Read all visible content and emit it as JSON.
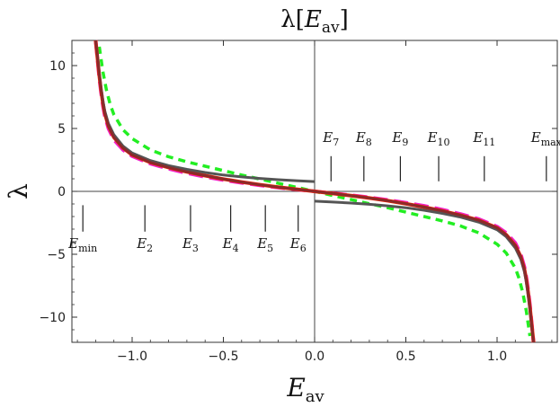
{
  "chart_data": {
    "type": "line",
    "title": "λ[E_av]",
    "title_parts": {
      "lambda": "λ",
      "open": "[",
      "E": "E",
      "sub": "av",
      "close": "]"
    },
    "xlabel": {
      "main": "E",
      "sub": "av"
    },
    "ylabel": "λ",
    "xlim": [
      -1.33,
      1.33
    ],
    "ylim": [
      -12,
      12
    ],
    "x_ticks": [
      -1.0,
      -0.5,
      0.0,
      0.5,
      1.0
    ],
    "x_tick_labels": [
      "−1.0",
      "−0.5",
      "0.0",
      "0.5",
      "1.0"
    ],
    "y_ticks": [
      -10,
      -5,
      0,
      5,
      10
    ],
    "y_tick_labels": [
      "−10",
      "−5",
      "0",
      "5",
      "10"
    ],
    "grid": false,
    "axes_through_origin": true,
    "energy_markers_lower": [
      {
        "x": -1.27,
        "main": "E",
        "sub": "min"
      },
      {
        "x": -0.93,
        "main": "E",
        "sub": "2"
      },
      {
        "x": -0.68,
        "main": "E",
        "sub": "3"
      },
      {
        "x": -0.46,
        "main": "E",
        "sub": "4"
      },
      {
        "x": -0.27,
        "main": "E",
        "sub": "5"
      },
      {
        "x": -0.09,
        "main": "E",
        "sub": "6"
      }
    ],
    "energy_markers_upper": [
      {
        "x": 0.09,
        "main": "E",
        "sub": "7"
      },
      {
        "x": 0.27,
        "main": "E",
        "sub": "8"
      },
      {
        "x": 0.47,
        "main": "E",
        "sub": "9"
      },
      {
        "x": 0.68,
        "main": "E",
        "sub": "10"
      },
      {
        "x": 0.93,
        "main": "E",
        "sub": "11"
      },
      {
        "x": 1.27,
        "main": "E",
        "sub": "max"
      }
    ],
    "series": [
      {
        "color": "#22ee22",
        "style": "dashed",
        "width": 3.5,
        "x": [
          -1.18,
          -1.16,
          -1.14,
          -1.12,
          -1.1,
          -1.05,
          -1.0,
          -0.9,
          -0.8,
          -0.7,
          -0.6,
          -0.5,
          -0.4,
          -0.3,
          -0.2,
          -0.1,
          0.0,
          0.1,
          0.2,
          0.3,
          0.4,
          0.5,
          0.6,
          0.7,
          0.8,
          0.9,
          1.0,
          1.05,
          1.1,
          1.12,
          1.14,
          1.16,
          1.18
        ],
        "y": [
          11.5,
          9.5,
          8.0,
          6.9,
          6.1,
          4.9,
          4.2,
          3.3,
          2.75,
          2.35,
          2.0,
          1.65,
          1.3,
          0.98,
          0.65,
          0.33,
          0.0,
          -0.33,
          -0.65,
          -0.98,
          -1.3,
          -1.65,
          -2.0,
          -2.35,
          -2.75,
          -3.3,
          -4.2,
          -4.9,
          -6.1,
          -6.9,
          -8.0,
          -9.5,
          -11.5
        ]
      },
      {
        "color": "#ee22cc",
        "style": "dashed",
        "width": 4,
        "x": [
          -1.2,
          -1.19,
          -1.18,
          -1.17,
          -1.16,
          -1.15,
          -1.13,
          -1.1,
          -1.05,
          -1.0,
          -0.9,
          -0.8,
          -0.7,
          -0.6,
          -0.5,
          -0.4,
          -0.3,
          -0.2,
          -0.1,
          0.0,
          0.1,
          0.2,
          0.3,
          0.4,
          0.5,
          0.6,
          0.7,
          0.8,
          0.9,
          1.0,
          1.05,
          1.1,
          1.13,
          1.15,
          1.16,
          1.17,
          1.18,
          1.19,
          1.2
        ],
        "y": [
          12.0,
          10.5,
          9.0,
          7.8,
          6.8,
          6.0,
          5.0,
          4.1,
          3.3,
          2.8,
          2.2,
          1.8,
          1.45,
          1.15,
          0.9,
          0.68,
          0.48,
          0.3,
          0.15,
          0.0,
          -0.15,
          -0.3,
          -0.48,
          -0.68,
          -0.9,
          -1.15,
          -1.45,
          -1.8,
          -2.2,
          -2.8,
          -3.3,
          -4.1,
          -5.0,
          -6.0,
          -6.8,
          -7.8,
          -9.0,
          -10.5,
          -12.0
        ]
      },
      {
        "color": "#ff2200",
        "style": "solid",
        "width": 4,
        "x": [
          -1.2,
          -1.19,
          -1.18,
          -1.17,
          -1.16,
          -1.15,
          -1.13,
          -1.1,
          -1.05,
          -1.0,
          -0.9,
          -0.8,
          -0.7,
          -0.6,
          -0.5,
          -0.4,
          -0.3,
          -0.2,
          -0.1,
          0.0,
          0.1,
          0.2,
          0.3,
          0.4,
          0.5,
          0.6,
          0.7,
          0.8,
          0.9,
          1.0,
          1.05,
          1.1,
          1.13,
          1.15,
          1.16,
          1.17,
          1.18,
          1.19,
          1.2
        ],
        "y": [
          12.0,
          10.6,
          9.2,
          8.0,
          7.0,
          6.2,
          5.2,
          4.3,
          3.45,
          2.9,
          2.3,
          1.9,
          1.55,
          1.25,
          0.98,
          0.74,
          0.53,
          0.34,
          0.17,
          0.0,
          -0.17,
          -0.34,
          -0.53,
          -0.74,
          -0.98,
          -1.25,
          -1.55,
          -1.9,
          -2.3,
          -2.9,
          -3.45,
          -4.3,
          -5.2,
          -6.2,
          -7.0,
          -8.0,
          -9.2,
          -10.6,
          -12.0
        ]
      },
      {
        "color": "#555555",
        "style": "solid",
        "width": 3,
        "x": [
          -1.2,
          -1.19,
          -1.18,
          -1.17,
          -1.16,
          -1.15,
          -1.13,
          -1.1,
          -1.05,
          -1.0,
          -0.9,
          -0.8,
          -0.7,
          -0.6,
          -0.5,
          -0.4,
          -0.3,
          -0.2,
          -0.1,
          0.0
        ],
        "y": [
          12.0,
          10.8,
          9.4,
          8.2,
          7.2,
          6.4,
          5.4,
          4.5,
          3.6,
          3.05,
          2.45,
          2.05,
          1.75,
          1.5,
          1.3,
          1.15,
          1.03,
          0.93,
          0.85,
          0.78
        ]
      },
      {
        "color": "#555555",
        "style": "solid",
        "width": 3,
        "x": [
          0.0,
          0.1,
          0.2,
          0.3,
          0.4,
          0.5,
          0.6,
          0.7,
          0.8,
          0.9,
          1.0,
          1.05,
          1.1,
          1.13,
          1.15,
          1.16,
          1.17,
          1.18,
          1.19,
          1.2
        ],
        "y": [
          -0.78,
          -0.85,
          -0.93,
          -1.03,
          -1.15,
          -1.3,
          -1.5,
          -1.75,
          -2.05,
          -2.45,
          -3.05,
          -3.6,
          -4.5,
          -5.4,
          -6.4,
          -7.2,
          -8.2,
          -9.4,
          -10.8,
          -12.0
        ]
      },
      {
        "color": "#8b2a2a",
        "style": "solid",
        "width": 3,
        "x": [
          -1.2,
          -1.19,
          -1.18,
          -1.17,
          -1.16,
          -1.15,
          -1.13,
          -1.1,
          -1.05,
          -1.0,
          -0.9,
          -0.8,
          -0.7,
          -0.6,
          -0.5,
          -0.4,
          -0.3,
          -0.2,
          -0.1,
          0.0,
          0.1,
          0.2,
          0.3,
          0.4,
          0.5,
          0.6,
          0.7,
          0.8,
          0.9,
          1.0,
          1.05,
          1.1,
          1.13,
          1.15,
          1.16,
          1.17,
          1.18,
          1.19,
          1.2
        ],
        "y": [
          12.0,
          10.6,
          9.2,
          8.0,
          7.0,
          6.2,
          5.2,
          4.3,
          3.45,
          2.9,
          2.3,
          1.9,
          1.55,
          1.25,
          0.98,
          0.74,
          0.53,
          0.34,
          0.17,
          0.0,
          -0.17,
          -0.34,
          -0.53,
          -0.74,
          -0.98,
          -1.25,
          -1.55,
          -1.9,
          -2.3,
          -2.9,
          -3.45,
          -4.3,
          -5.2,
          -6.2,
          -7.0,
          -8.0,
          -9.2,
          -10.6,
          -12.0
        ]
      }
    ]
  }
}
